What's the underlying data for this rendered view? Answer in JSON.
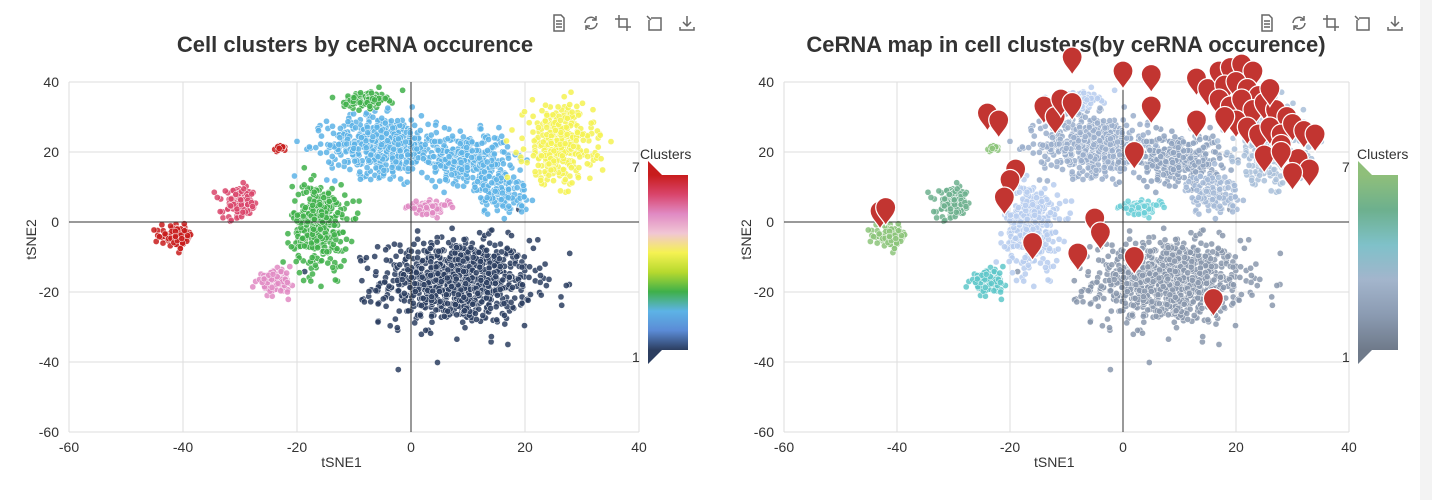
{
  "toolbox": {
    "icons": [
      "data-view-icon",
      "restore-icon",
      "zoom-icon",
      "zoom-reset-icon",
      "download-icon"
    ]
  },
  "chart_data": [
    {
      "type": "scatter",
      "title": "Cell clusters by ceRNA occurence",
      "xlabel": "tSNE1",
      "ylabel": "tSNE2",
      "xlim": [
        -60,
        40
      ],
      "ylim": [
        -60,
        40
      ],
      "xticks": [
        "-60",
        "-40",
        "-20",
        "0",
        "20",
        "40"
      ],
      "yticks": [
        "-60",
        "-40",
        "-20",
        "0",
        "20",
        "40"
      ],
      "grid": true,
      "visual_map": {
        "title": "Clusters",
        "min_label": "1",
        "max_label": "7",
        "colors": [
          "#2c3e60",
          "#5b8bd6",
          "#5db3e6",
          "#3fb04a",
          "#b6d92e",
          "#f5f252",
          "#f1c6d4",
          "#e08ac3",
          "#d9456b",
          "#c81c1c"
        ]
      },
      "clusters": [
        {
          "cx": 8,
          "cy": -17,
          "sx": 11,
          "sy": 10,
          "n": 900,
          "color": "#2c3e60"
        },
        {
          "cx": -5,
          "cy": 22,
          "sx": 8,
          "sy": 7,
          "n": 520,
          "color": "#5db3e6"
        },
        {
          "cx": 10,
          "cy": 18,
          "sx": 6,
          "sy": 6,
          "n": 320,
          "color": "#5db3e6"
        },
        {
          "cx": 16,
          "cy": 8,
          "sx": 4,
          "sy": 5,
          "n": 120,
          "color": "#5db3e6"
        },
        {
          "cx": -16,
          "cy": -1,
          "sx": 4,
          "sy": 10,
          "n": 360,
          "color": "#3fb04a"
        },
        {
          "cx": -8,
          "cy": 35,
          "sx": 3,
          "sy": 2,
          "n": 110,
          "color": "#3fb04a"
        },
        {
          "cx": 26,
          "cy": 22,
          "sx": 5,
          "sy": 9,
          "n": 380,
          "color": "#f5f252"
        },
        {
          "cx": 3,
          "cy": 4,
          "sx": 3,
          "sy": 1.5,
          "n": 100,
          "color": "#e08ac3"
        },
        {
          "cx": -24,
          "cy": -17,
          "sx": 2.5,
          "sy": 2.5,
          "n": 110,
          "color": "#e08ac3"
        },
        {
          "cx": -30,
          "cy": 5,
          "sx": 2.5,
          "sy": 3.5,
          "n": 110,
          "color": "#d9456b"
        },
        {
          "cx": -41,
          "cy": -4,
          "sx": 2.3,
          "sy": 2.3,
          "n": 130,
          "color": "#c81c1c"
        },
        {
          "cx": -23,
          "cy": 21,
          "sx": 1,
          "sy": 1,
          "n": 18,
          "color": "#c81c1c"
        }
      ]
    },
    {
      "type": "scatter",
      "title": "CeRNA map in cell clusters(by ceRNA occurence)",
      "xlabel": "tSNE1",
      "ylabel": "tSNE2",
      "xlim": [
        -60,
        40
      ],
      "ylim": [
        -60,
        40
      ],
      "xticks": [
        "-60",
        "-40",
        "-20",
        "0",
        "20",
        "40"
      ],
      "yticks": [
        "-60",
        "-40",
        "-20",
        "0",
        "20",
        "40"
      ],
      "grid": true,
      "visual_map": {
        "title": "Clusters",
        "min_label": "1",
        "max_label": "7",
        "colors": [
          "#6f7a8a",
          "#8b9bb2",
          "#a3b5cc",
          "#7fc1c9",
          "#6db08e",
          "#8fbf7a"
        ]
      },
      "clusters": [
        {
          "cx": 8,
          "cy": -17,
          "sx": 11,
          "sy": 10,
          "n": 900,
          "color": "#8a98ad"
        },
        {
          "cx": -5,
          "cy": 22,
          "sx": 8,
          "sy": 7,
          "n": 520,
          "color": "#9aaecb"
        },
        {
          "cx": 10,
          "cy": 18,
          "sx": 6,
          "sy": 6,
          "n": 320,
          "color": "#8fa3c0"
        },
        {
          "cx": 16,
          "cy": 8,
          "sx": 4,
          "sy": 5,
          "n": 120,
          "color": "#a3b9d6"
        },
        {
          "cx": -16,
          "cy": -1,
          "sx": 4,
          "sy": 10,
          "n": 360,
          "color": "#b7cdee"
        },
        {
          "cx": -8,
          "cy": 35,
          "sx": 3,
          "sy": 2,
          "n": 110,
          "color": "#b7cdee"
        },
        {
          "cx": 26,
          "cy": 22,
          "sx": 5,
          "sy": 9,
          "n": 380,
          "color": "#a9bfd9"
        },
        {
          "cx": 3,
          "cy": 4,
          "sx": 3,
          "sy": 1.5,
          "n": 100,
          "color": "#6fd0d8"
        },
        {
          "cx": -24,
          "cy": -17,
          "sx": 2.5,
          "sy": 2.5,
          "n": 110,
          "color": "#5ec7c9"
        },
        {
          "cx": -30,
          "cy": 5,
          "sx": 2.5,
          "sy": 3.5,
          "n": 110,
          "color": "#6db08e"
        },
        {
          "cx": -41,
          "cy": -4,
          "sx": 2.3,
          "sy": 2.3,
          "n": 130,
          "color": "#8cc47a"
        },
        {
          "cx": -23,
          "cy": 21,
          "sx": 1,
          "sy": 1,
          "n": 18,
          "color": "#8cc47a"
        }
      ],
      "markers": [
        {
          "x": -9,
          "y": 42
        },
        {
          "x": 0,
          "y": 38
        },
        {
          "x": 5,
          "y": 37
        },
        {
          "x": -24,
          "y": 26
        },
        {
          "x": -22,
          "y": 24
        },
        {
          "x": -14,
          "y": 28
        },
        {
          "x": -12,
          "y": 25
        },
        {
          "x": -11,
          "y": 30
        },
        {
          "x": -9,
          "y": 29
        },
        {
          "x": 5,
          "y": 28
        },
        {
          "x": 2,
          "y": 15
        },
        {
          "x": -19,
          "y": 10
        },
        {
          "x": -20,
          "y": 7
        },
        {
          "x": -21,
          "y": 2
        },
        {
          "x": -5,
          "y": -4
        },
        {
          "x": -4,
          "y": -8
        },
        {
          "x": -16,
          "y": -11
        },
        {
          "x": -8,
          "y": -14
        },
        {
          "x": 2,
          "y": -15
        },
        {
          "x": 16,
          "y": -27
        },
        {
          "x": 13,
          "y": 36
        },
        {
          "x": 15,
          "y": 33
        },
        {
          "x": 13,
          "y": 24
        },
        {
          "x": 17,
          "y": 38
        },
        {
          "x": 19,
          "y": 39
        },
        {
          "x": 21,
          "y": 40
        },
        {
          "x": 23,
          "y": 38
        },
        {
          "x": 18,
          "y": 34
        },
        {
          "x": 20,
          "y": 35
        },
        {
          "x": 22,
          "y": 33
        },
        {
          "x": 24,
          "y": 31
        },
        {
          "x": 17,
          "y": 30
        },
        {
          "x": 19,
          "y": 28
        },
        {
          "x": 21,
          "y": 30
        },
        {
          "x": 23,
          "y": 27
        },
        {
          "x": 25,
          "y": 29
        },
        {
          "x": 27,
          "y": 27
        },
        {
          "x": 29,
          "y": 25
        },
        {
          "x": 20,
          "y": 24
        },
        {
          "x": 22,
          "y": 22
        },
        {
          "x": 24,
          "y": 20
        },
        {
          "x": 26,
          "y": 22
        },
        {
          "x": 28,
          "y": 20
        },
        {
          "x": 30,
          "y": 23
        },
        {
          "x": 32,
          "y": 21
        },
        {
          "x": 34,
          "y": 20
        },
        {
          "x": 25,
          "y": 14
        },
        {
          "x": 28,
          "y": 17
        },
        {
          "x": 31,
          "y": 13
        },
        {
          "x": 33,
          "y": 10
        },
        {
          "x": 30,
          "y": 9
        },
        {
          "x": 26,
          "y": 33
        },
        {
          "x": 18,
          "y": 25
        },
        {
          "x": -43,
          "y": -2
        },
        {
          "x": -42,
          "y": -1
        },
        {
          "x": 28,
          "y": 15
        }
      ]
    }
  ]
}
